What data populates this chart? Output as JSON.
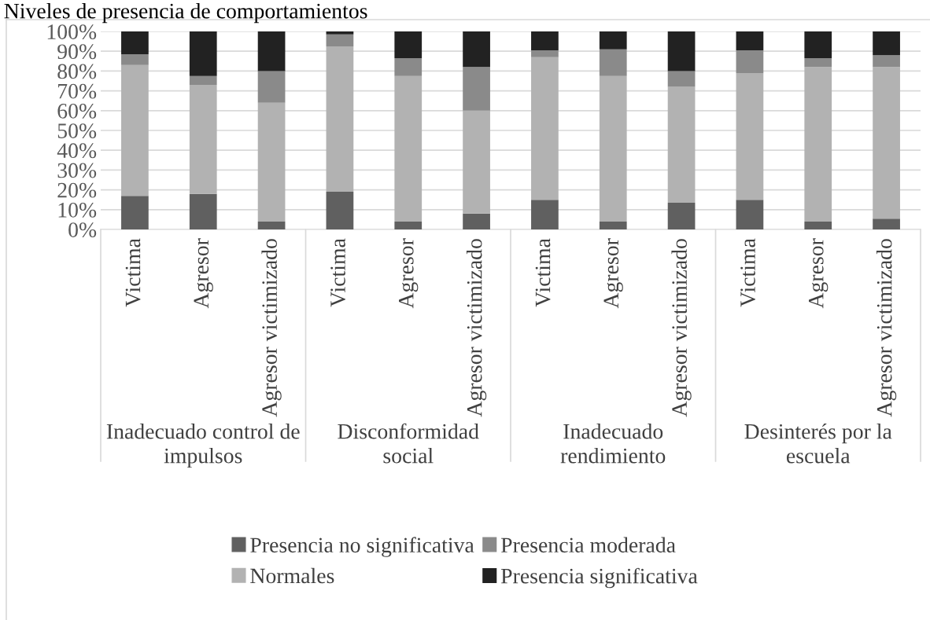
{
  "chart_data": {
    "type": "bar",
    "stacked": true,
    "title": "Niveles de presencia de comportamientos",
    "categories": [
      "Victima",
      "Agresor",
      "Agresor victimizado",
      "Victima",
      "Agresor",
      "Agresor victimizado",
      "Victima",
      "Agresor",
      "Agresor victimizado",
      "Victima",
      "Agresor",
      "Agresor victimizado"
    ],
    "annotations": [
      "Inadecuado control de impulsos",
      "Disconformidad social",
      "Inadecuado rendimiento",
      "Desinterés por la escuela"
    ],
    "series": [
      {
        "name": "Presencia no significativa",
        "color": "#606060",
        "values": [
          17,
          18,
          4,
          19,
          4,
          8,
          15,
          4,
          13.5,
          15,
          4,
          5.5
        ]
      },
      {
        "name": "Normales",
        "color": "#b2b2b2",
        "values": [
          66,
          55,
          60,
          73.5,
          73.5,
          52,
          72,
          73.5,
          58.5,
          64,
          78,
          76.5
        ]
      },
      {
        "name": "Presencia moderada",
        "color": "#8a8a8a",
        "values": [
          5.5,
          4.5,
          16,
          6,
          9,
          22,
          3.5,
          13.5,
          8,
          11.5,
          4.5,
          6
        ]
      },
      {
        "name": "Presencia significativa",
        "color": "#222222",
        "values": [
          11.5,
          22.5,
          20,
          1.5,
          13.5,
          18,
          9.5,
          9,
          20,
          9.5,
          13.5,
          12
        ]
      }
    ],
    "ylim": [
      0,
      100
    ],
    "yticks": [
      {
        "value": 0,
        "label": "0%"
      },
      {
        "value": 10,
        "label": "10%"
      },
      {
        "value": 20,
        "label": "20%"
      },
      {
        "value": 30,
        "label": "30%"
      },
      {
        "value": 40,
        "label": "40%"
      },
      {
        "value": 50,
        "label": "50%"
      },
      {
        "value": 60,
        "label": "60%"
      },
      {
        "value": 70,
        "label": "70%"
      },
      {
        "value": 80,
        "label": "80%"
      },
      {
        "value": 90,
        "label": "90%"
      },
      {
        "value": 100,
        "label": "100%"
      }
    ],
    "grid": "y",
    "legend": "bottom"
  }
}
